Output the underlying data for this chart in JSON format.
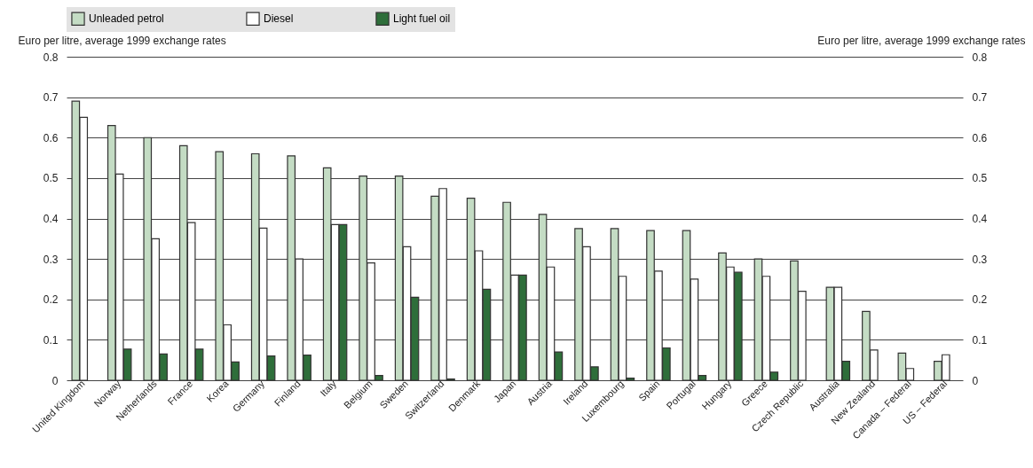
{
  "chart_data": {
    "type": "bar",
    "ylabel": "Euro per litre, average 1999 exchange rates",
    "y2label": "Euro per litre, average 1999 exchange rates",
    "categories": [
      "United Kingdom",
      "Norway",
      "Netherlands",
      "France",
      "Korea",
      "Germany",
      "Finland",
      "Italy",
      "Belgium",
      "Sweden",
      "Switzerland",
      "Denmark",
      "Japan",
      "Austria",
      "Ireland",
      "Luxembourg",
      "Spain",
      "Portugal",
      "Hungary",
      "Greece",
      "Czech Republic",
      "Australia",
      "New Zealand",
      "Canada – Federal",
      "US – Federal"
    ],
    "series": [
      {
        "name": "Unleaded petrol",
        "color": "#c4dcc4",
        "values": [
          0.69,
          0.63,
          0.6,
          0.58,
          0.565,
          0.56,
          0.555,
          0.525,
          0.505,
          0.505,
          0.455,
          0.45,
          0.44,
          0.41,
          0.375,
          0.375,
          0.37,
          0.37,
          0.315,
          0.3,
          0.295,
          0.23,
          0.17,
          0.067,
          0.047
        ]
      },
      {
        "name": "Diesel",
        "color": "#ffffff",
        "values": [
          0.65,
          0.51,
          0.35,
          0.39,
          0.137,
          0.376,
          0.3,
          0.385,
          0.29,
          0.33,
          0.474,
          0.32,
          0.26,
          0.28,
          0.33,
          0.257,
          0.27,
          0.25,
          0.28,
          0.257,
          0.22,
          0.23,
          0.075,
          0.029,
          0.063
        ]
      },
      {
        "name": "Light fuel oil",
        "color": "#2e6e3a",
        "values": [
          null,
          0.077,
          0.065,
          0.077,
          0.045,
          0.06,
          0.062,
          0.385,
          0.012,
          0.205,
          0.003,
          0.225,
          0.26,
          0.07,
          0.033,
          0.005,
          0.08,
          0.012,
          0.267,
          0.02,
          null,
          0.047,
          null,
          null,
          null
        ]
      }
    ],
    "ylim": [
      0,
      0.8
    ],
    "yticks": [
      0,
      0.1,
      0.2,
      0.3,
      0.4,
      0.5,
      0.6,
      0.7,
      0.8
    ],
    "y2lim": [
      0,
      0.8
    ],
    "y2ticks": [
      0,
      0.1,
      0.2,
      0.3,
      0.4,
      0.5,
      0.6,
      0.7,
      0.8
    ],
    "grid": "y",
    "legend": "top"
  }
}
